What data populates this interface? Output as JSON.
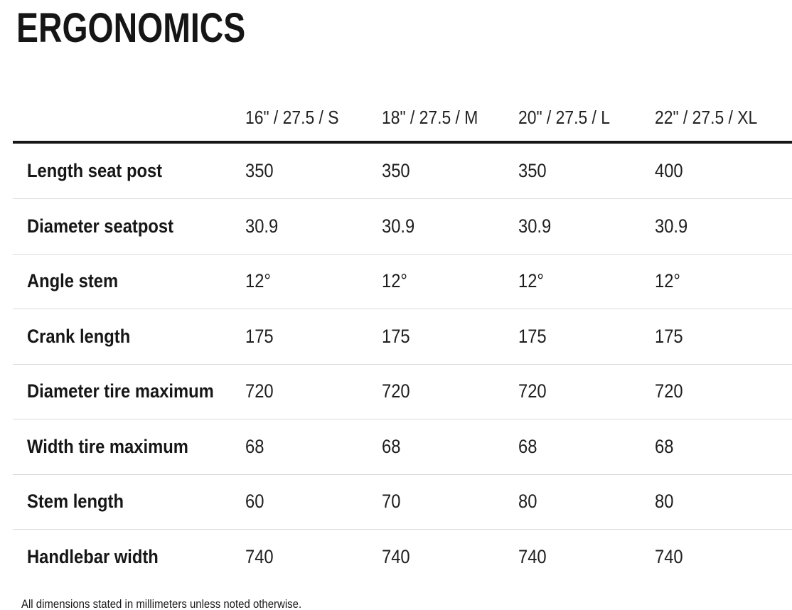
{
  "page": {
    "title": "ERGONOMICS",
    "footnote": "All dimensions stated in millimeters unless noted otherwise."
  },
  "table": {
    "columns": [
      "16\" / 27.5 / S",
      "18\" / 27.5 / M",
      "20\" / 27.5 / L",
      "22\" / 27.5 / XL"
    ],
    "rows": [
      {
        "label": "Length seat post",
        "values": [
          "350",
          "350",
          "350",
          "400"
        ]
      },
      {
        "label": "Diameter seatpost",
        "values": [
          "30.9",
          "30.9",
          "30.9",
          "30.9"
        ]
      },
      {
        "label": "Angle stem",
        "values": [
          "12°",
          "12°",
          "12°",
          "12°"
        ]
      },
      {
        "label": "Crank length",
        "values": [
          "175",
          "175",
          "175",
          "175"
        ]
      },
      {
        "label": "Diameter tire maximum",
        "values": [
          "720",
          "720",
          "720",
          "720"
        ]
      },
      {
        "label": "Width tire maximum",
        "values": [
          "68",
          "68",
          "68",
          "68"
        ]
      },
      {
        "label": "Stem length",
        "values": [
          "60",
          "70",
          "80",
          "80"
        ]
      },
      {
        "label": "Handlebar width",
        "values": [
          "740",
          "740",
          "740",
          "740"
        ]
      }
    ]
  },
  "colors": {
    "text": "#1a1a1a",
    "heavy_rule": "#161616",
    "light_rule": "#d9d9d9",
    "background": "#ffffff"
  }
}
